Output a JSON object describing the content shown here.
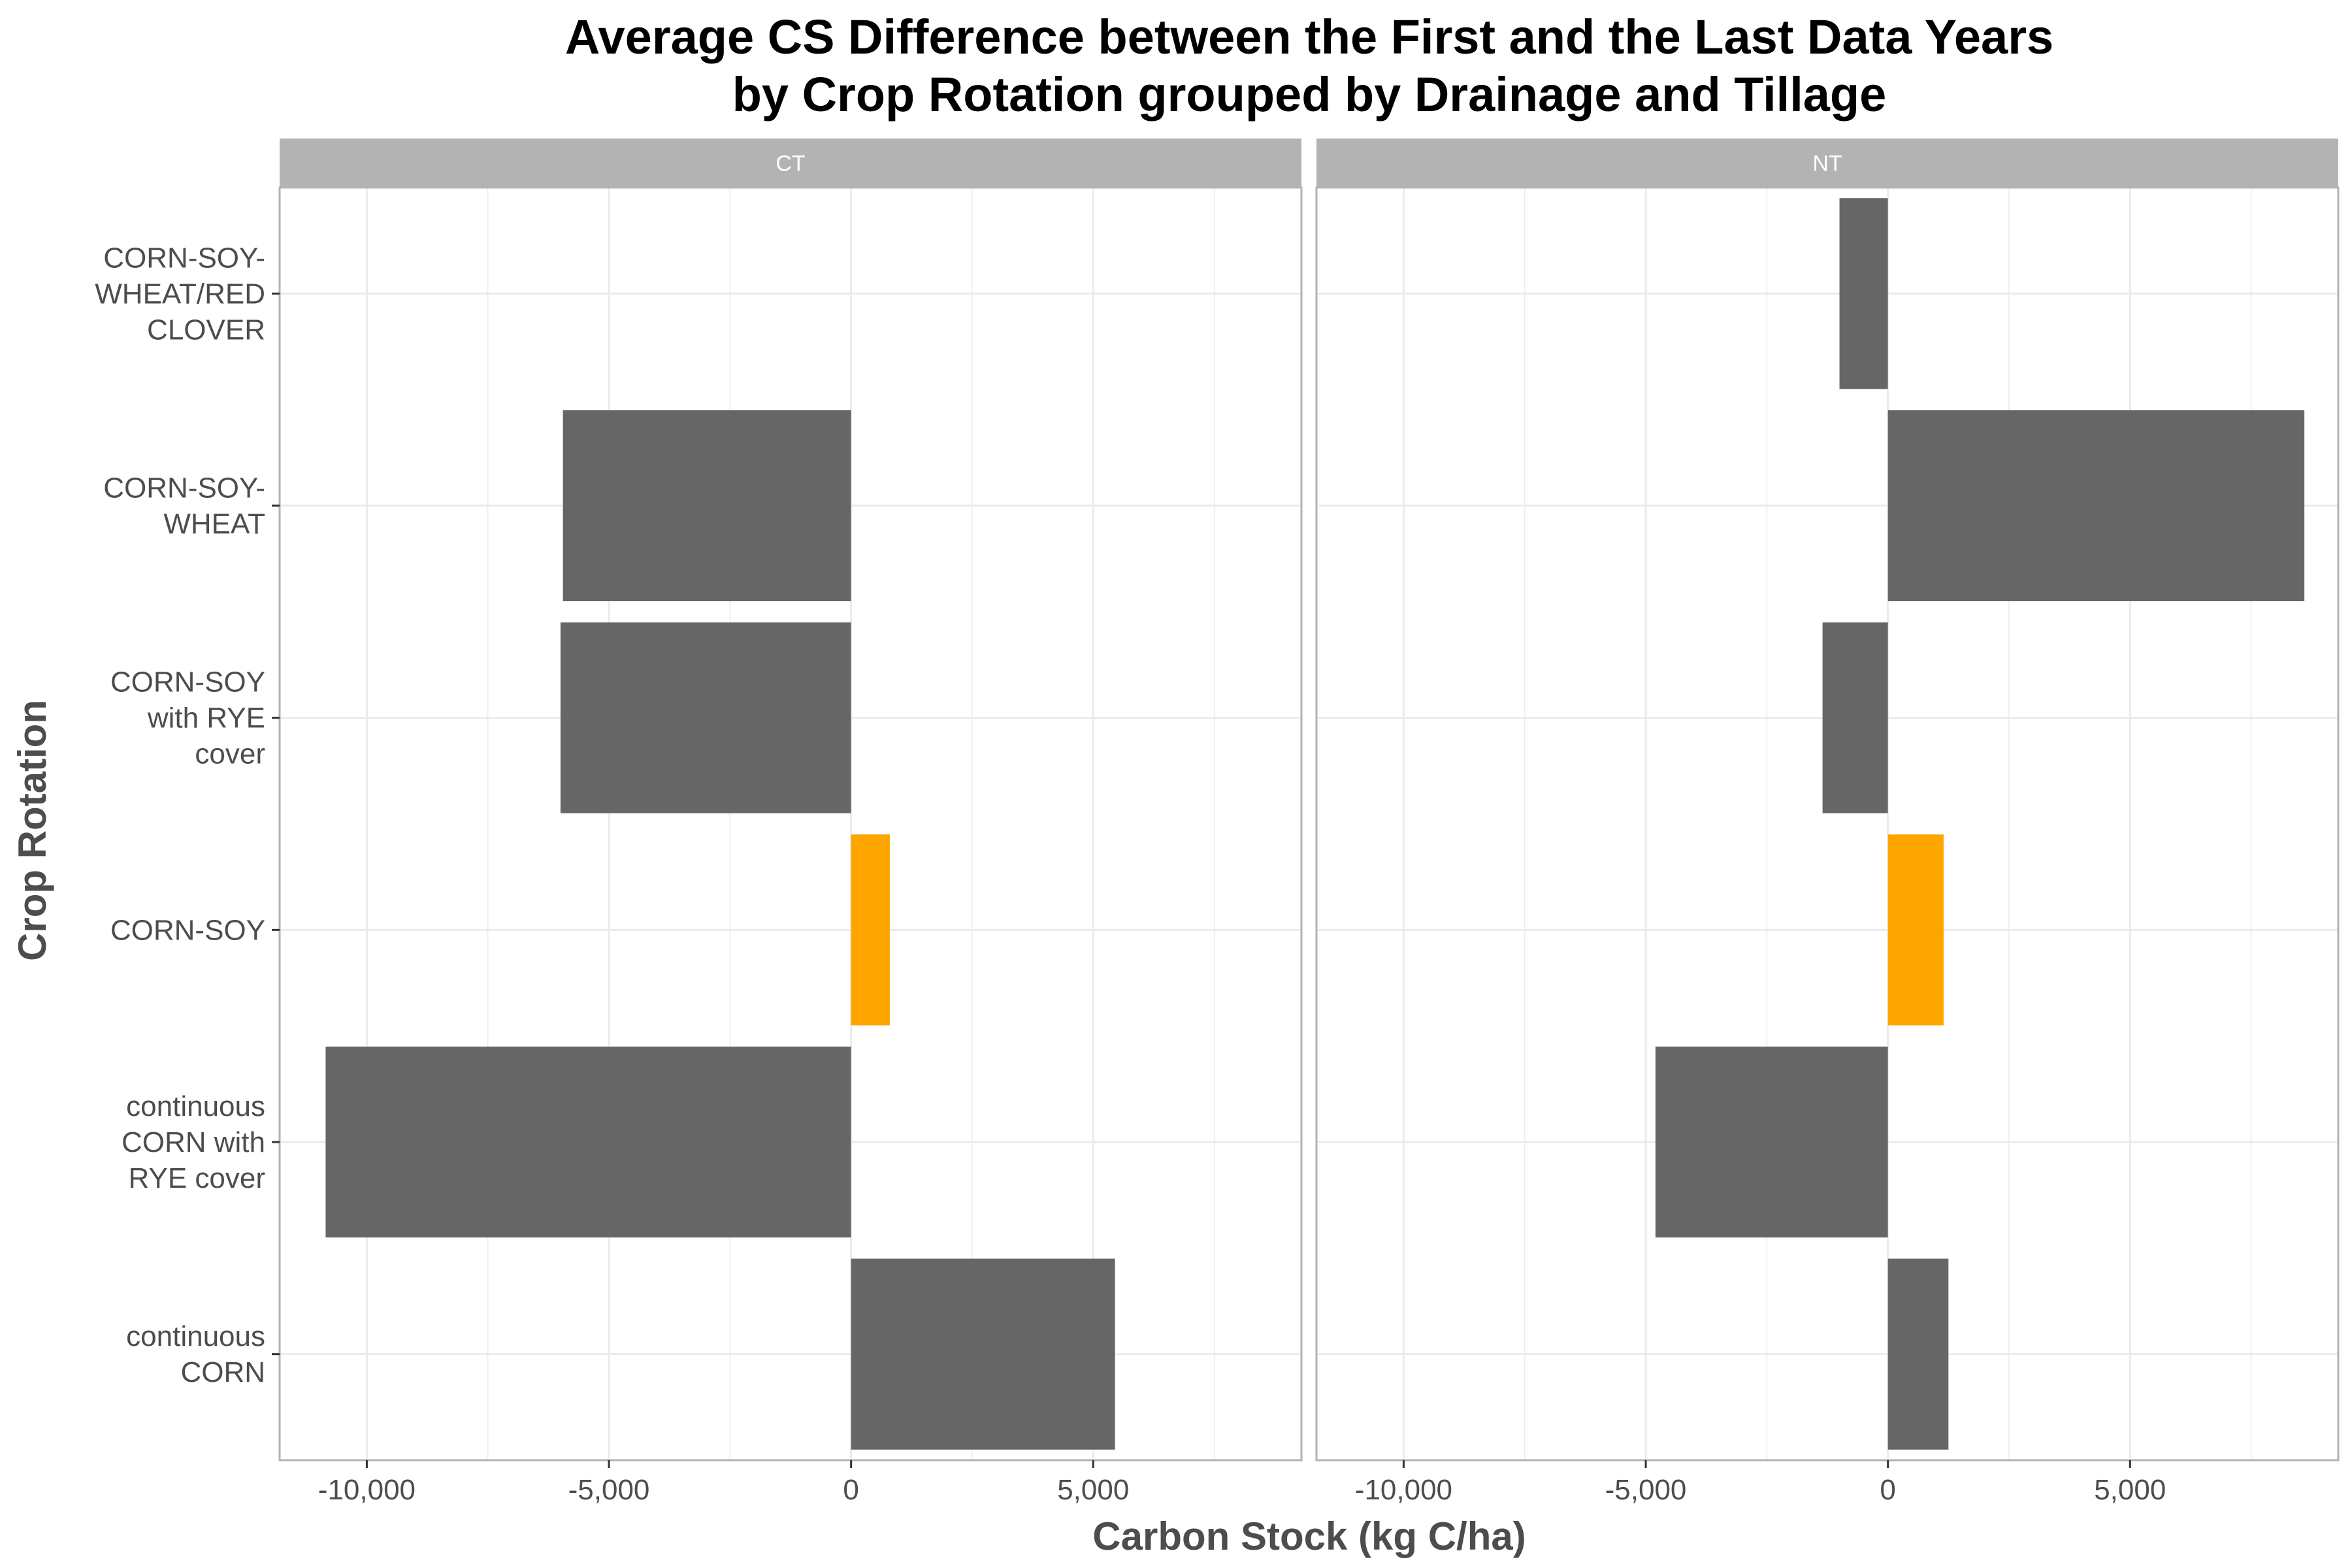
{
  "chart_data": {
    "type": "bar",
    "orientation": "horizontal",
    "title": [
      "Average CS Difference between the First and the Last Data Years",
      "by Crop Rotation grouped by Drainage and Tillage"
    ],
    "xlabel": "Carbon Stock (kg C/ha)",
    "ylabel": "Crop Rotation",
    "xlim": [
      -11800,
      9300
    ],
    "x_ticks": [
      -10000,
      -5000,
      0,
      5000
    ],
    "x_tick_labels": [
      "-10,000",
      "-5,000",
      "0",
      "5,000"
    ],
    "x_minor_ticks": [
      -7500,
      -2500,
      2500,
      7500
    ],
    "categories": [
      {
        "key": "csw_rc",
        "lines": [
          "CORN-SOY-",
          "WHEAT/RED",
          "CLOVER"
        ]
      },
      {
        "key": "csw",
        "lines": [
          "CORN-SOY-",
          "WHEAT"
        ]
      },
      {
        "key": "cs_rye",
        "lines": [
          "CORN-SOY",
          "with RYE",
          "cover"
        ]
      },
      {
        "key": "cs",
        "lines": [
          "CORN-SOY"
        ]
      },
      {
        "key": "cc_rye",
        "lines": [
          "continuous",
          "CORN with",
          "RYE cover"
        ]
      },
      {
        "key": "cc",
        "lines": [
          "continuous",
          "CORN"
        ]
      }
    ],
    "facets": [
      {
        "label": "CT",
        "values": [
          null,
          -5950,
          -6000,
          800,
          -10850,
          5450
        ]
      },
      {
        "label": "NT",
        "values": [
          -1000,
          8600,
          -1350,
          1150,
          -4800,
          1250
        ]
      }
    ],
    "colors": {
      "default_bar": "#666666",
      "highlight_bar": "#ffa500",
      "strip_background": "#b3b3b3",
      "grid": "#ebebeb",
      "panel_border": "#b3b3b3"
    },
    "highlight_category": "cs",
    "grid": true,
    "legend": "none"
  }
}
